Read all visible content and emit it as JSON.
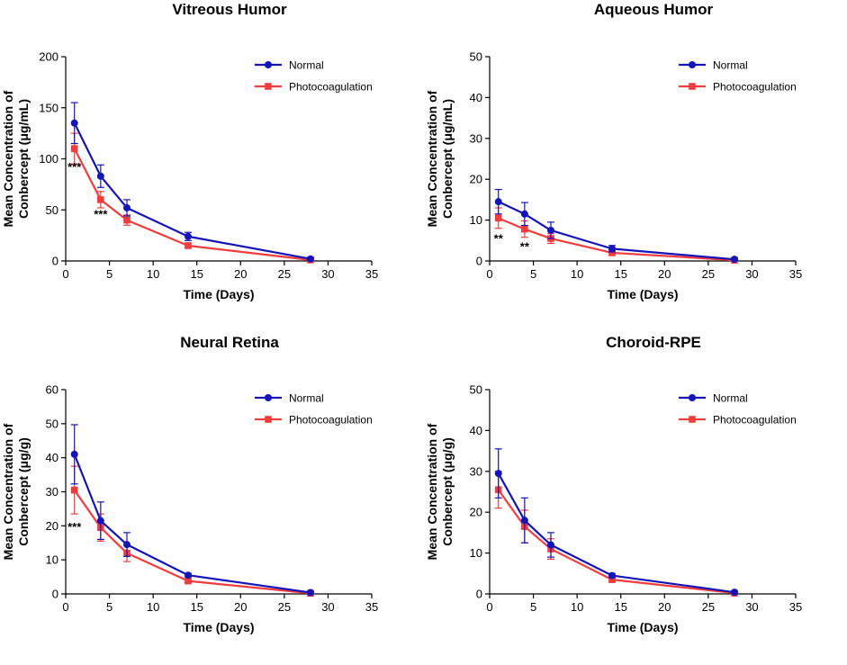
{
  "chart_data": [
    {
      "type": "line",
      "title": "Vitreous Humor",
      "xlabel": "Time (Days)",
      "ylabel_line1": "Mean Concentration of",
      "ylabel_line2": "Conbercept (μg/mL)",
      "xlim": [
        0,
        35
      ],
      "ylim": [
        0,
        200
      ],
      "xticks": [
        0,
        5,
        10,
        15,
        20,
        25,
        30,
        35
      ],
      "yticks": [
        0,
        50,
        100,
        150,
        200
      ],
      "legend_position": "top-right",
      "series": [
        {
          "name": "Normal",
          "color": "#1414b8",
          "marker": "circle",
          "x": [
            1,
            4,
            7,
            14,
            28
          ],
          "y": [
            135,
            83,
            52,
            24,
            2
          ],
          "err": [
            20,
            11,
            8,
            4,
            1
          ]
        },
        {
          "name": "Photocoagulation",
          "color": "#f03c3c",
          "marker": "square",
          "x": [
            1,
            4,
            7,
            14,
            28
          ],
          "y": [
            110,
            60,
            40,
            15,
            1
          ],
          "err": [
            15,
            8,
            5,
            2,
            0.5
          ]
        }
      ],
      "annotations": [
        {
          "x": 1,
          "y": 88,
          "text": "***"
        },
        {
          "x": 4,
          "y": 42,
          "text": "***"
        }
      ]
    },
    {
      "type": "line",
      "title": "Aqueous Humor",
      "xlabel": "Time (Days)",
      "ylabel_line1": "Mean Concentration of",
      "ylabel_line2": "Conbercept (μg/mL)",
      "xlim": [
        0,
        35
      ],
      "ylim": [
        0,
        50
      ],
      "xticks": [
        0,
        5,
        10,
        15,
        20,
        25,
        30,
        35
      ],
      "yticks": [
        0,
        10,
        20,
        30,
        40,
        50
      ],
      "legend_position": "top-right",
      "series": [
        {
          "name": "Normal",
          "color": "#1414b8",
          "marker": "circle",
          "x": [
            1,
            4,
            7,
            14,
            28
          ],
          "y": [
            14.5,
            11.5,
            7.5,
            3,
            0.4
          ],
          "err": [
            3,
            2.8,
            2,
            0.8,
            0.2
          ]
        },
        {
          "name": "Photocoagulation",
          "color": "#f03c3c",
          "marker": "square",
          "x": [
            1,
            4,
            7,
            14,
            28
          ],
          "y": [
            10.5,
            7.8,
            5.5,
            2,
            0.2
          ],
          "err": [
            2.5,
            2,
            1.2,
            0.5,
            0.1
          ]
        }
      ],
      "annotations": [
        {
          "x": 1,
          "y": 4.5,
          "text": "**"
        },
        {
          "x": 4,
          "y": 2.5,
          "text": "**"
        }
      ]
    },
    {
      "type": "line",
      "title": "Neural Retina",
      "xlabel": "Time (Days)",
      "ylabel_line1": "Mean Concentration of",
      "ylabel_line2": "Conbercept (μg/g)",
      "xlim": [
        0,
        35
      ],
      "ylim": [
        0,
        60
      ],
      "xticks": [
        0,
        5,
        10,
        15,
        20,
        25,
        30,
        35
      ],
      "yticks": [
        0,
        10,
        20,
        30,
        40,
        50,
        60
      ],
      "legend_position": "top-right",
      "series": [
        {
          "name": "Normal",
          "color": "#1414b8",
          "marker": "circle",
          "x": [
            1,
            4,
            7,
            14,
            28
          ],
          "y": [
            41,
            21.5,
            14.5,
            5.5,
            0.4
          ],
          "err": [
            8.7,
            5.5,
            3.5,
            0.5,
            0.2
          ]
        },
        {
          "name": "Photocoagulation",
          "color": "#f03c3c",
          "marker": "square",
          "x": [
            1,
            4,
            7,
            14,
            28
          ],
          "y": [
            30.5,
            19.5,
            12,
            3.8,
            0.2
          ],
          "err": [
            7,
            4,
            2.5,
            0.5,
            0.1
          ]
        }
      ],
      "annotations": [
        {
          "x": 1,
          "y": 18.5,
          "text": "***"
        }
      ]
    },
    {
      "type": "line",
      "title": "Choroid-RPE",
      "xlabel": "Time (Days)",
      "ylabel_line1": "Mean Concentration of",
      "ylabel_line2": "Conbercept (μg/g)",
      "xlim": [
        0,
        35
      ],
      "ylim": [
        0,
        50
      ],
      "xticks": [
        0,
        5,
        10,
        15,
        20,
        25,
        30,
        35
      ],
      "yticks": [
        0,
        10,
        20,
        30,
        40,
        50
      ],
      "legend_position": "top-right",
      "series": [
        {
          "name": "Normal",
          "color": "#1414b8",
          "marker": "circle",
          "x": [
            1,
            4,
            7,
            14,
            28
          ],
          "y": [
            29.5,
            18,
            12,
            4.5,
            0.4
          ],
          "err": [
            6,
            5.5,
            3,
            0.5,
            0.2
          ]
        },
        {
          "name": "Photocoagulation",
          "color": "#f03c3c",
          "marker": "square",
          "x": [
            1,
            4,
            7,
            14,
            28
          ],
          "y": [
            25.5,
            16.5,
            11,
            3.5,
            0.2
          ],
          "err": [
            4.5,
            4,
            2.5,
            0.5,
            0.1
          ]
        }
      ],
      "annotations": []
    }
  ]
}
